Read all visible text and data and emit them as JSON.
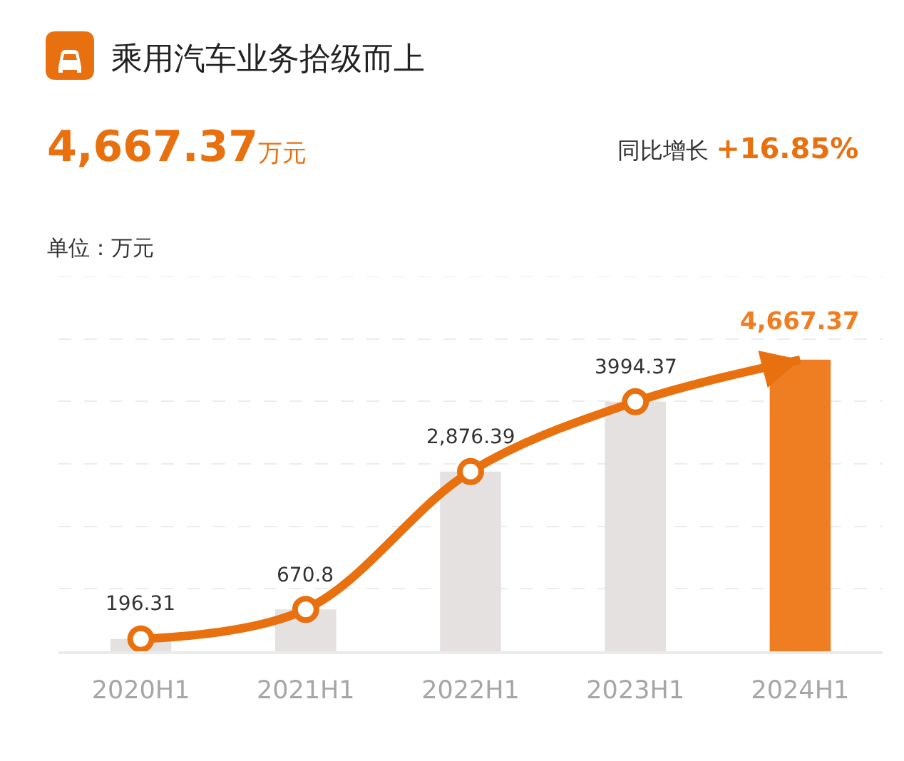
{
  "chart_data": {
    "type": "bar",
    "title": "乘用汽车业务拾级而上",
    "ylabel": "单位：万元",
    "annotations": [
      "4,667.37万元",
      "同比增长 +16.85%"
    ],
    "categories": [
      "2020H1",
      "2021H1",
      "2022H1",
      "2023H1",
      "2024H1"
    ],
    "series": [
      {
        "colors": [
          "#e6e1e1",
          "#e6e1e1",
          "#e6e1e1",
          "#e6e1e1",
          "#ef7d22"
        ],
        "values": [
          196.31,
          670.8,
          2876.39,
          3994.37,
          4667.37
        ],
        "value_labels": [
          "196.31",
          "670.8",
          "2,876.39",
          "3994.37",
          "4,667.37"
        ]
      },
      {
        "type": "line",
        "color": "#e8700f",
        "marker": "circle",
        "values": [
          196.31,
          670.8,
          2876.39,
          3994.37,
          4667.37
        ]
      }
    ],
    "ylim": [
      0,
      6000
    ],
    "yticks": [
      {
        "value": 1000,
        "label": null
      },
      {
        "value": 2000,
        "label": null
      },
      {
        "value": 3000,
        "label": null
      },
      {
        "value": 4000,
        "label": null
      },
      {
        "value": 5000,
        "label": null
      },
      {
        "value": 6000,
        "label": null
      }
    ],
    "grid": "y",
    "tick_labels": "x"
  }
}
